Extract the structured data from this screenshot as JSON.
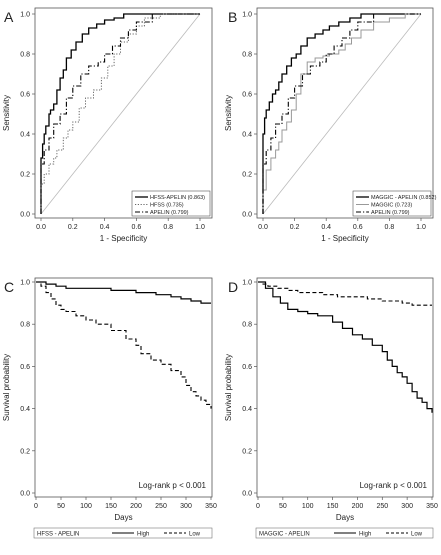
{
  "chart_data": [
    {
      "panel": "A",
      "type": "line",
      "xlabel": "1 - Specificity",
      "ylabel": "Sensitivity",
      "xlim": [
        0,
        1
      ],
      "ylim": [
        0,
        1
      ],
      "xticks": [
        "0.0",
        "0.2",
        "0.4",
        "0.6",
        "0.8",
        "1.0"
      ],
      "yticks": [
        "0.0",
        "0.2",
        "0.4",
        "0.6",
        "0.8",
        "1.0"
      ],
      "reference_line": true,
      "legend": "bottom-right",
      "series": [
        {
          "name": "HFSS-APELIN (0.863)",
          "style": "solid",
          "color": "#000000",
          "width": 1.3,
          "x": [
            0,
            0,
            0.01,
            0.02,
            0.03,
            0.05,
            0.06,
            0.08,
            0.1,
            0.12,
            0.14,
            0.16,
            0.19,
            0.22,
            0.26,
            0.3,
            0.35,
            0.4,
            0.46,
            0.52,
            0.56,
            0.6,
            0.7,
            0.8,
            1.0
          ],
          "y": [
            0,
            0.2,
            0.28,
            0.35,
            0.4,
            0.44,
            0.5,
            0.52,
            0.55,
            0.62,
            0.68,
            0.72,
            0.78,
            0.82,
            0.86,
            0.9,
            0.93,
            0.95,
            0.97,
            0.98,
            1.0,
            1.0,
            1.0,
            1.0,
            1.0
          ]
        },
        {
          "name": "HFSS (0.735)",
          "style": "dotted",
          "color": "#666666",
          "width": 1.0,
          "x": [
            0,
            0,
            0.02,
            0.05,
            0.08,
            0.1,
            0.14,
            0.17,
            0.2,
            0.24,
            0.28,
            0.33,
            0.38,
            0.42,
            0.46,
            0.5,
            0.55,
            0.6,
            0.65,
            0.75,
            0.85,
            1.0
          ],
          "y": [
            0,
            0.08,
            0.15,
            0.2,
            0.25,
            0.28,
            0.32,
            0.38,
            0.42,
            0.46,
            0.53,
            0.58,
            0.62,
            0.68,
            0.74,
            0.8,
            0.86,
            0.9,
            0.94,
            0.98,
            1.0,
            1.0
          ]
        },
        {
          "name": "APELIN (0.799)",
          "style": "dashdot",
          "color": "#000000",
          "width": 1.1,
          "x": [
            0,
            0,
            0.02,
            0.05,
            0.08,
            0.12,
            0.16,
            0.2,
            0.25,
            0.3,
            0.36,
            0.4,
            0.45,
            0.5,
            0.55,
            0.6,
            0.7,
            0.8,
            0.9,
            1.0
          ],
          "y": [
            0,
            0.15,
            0.25,
            0.32,
            0.38,
            0.45,
            0.5,
            0.58,
            0.64,
            0.7,
            0.74,
            0.76,
            0.8,
            0.84,
            0.88,
            0.92,
            0.96,
            1.0,
            1.0,
            1.0
          ]
        }
      ]
    },
    {
      "panel": "B",
      "type": "line",
      "xlabel": "1 - Specificity",
      "ylabel": "Sensitivity",
      "xlim": [
        0,
        1
      ],
      "ylim": [
        0,
        1
      ],
      "xticks": [
        "0.0",
        "0.2",
        "0.4",
        "0.6",
        "0.8",
        "1.0"
      ],
      "yticks": [
        "0.0",
        "0.2",
        "0.4",
        "0.6",
        "0.8",
        "1.0"
      ],
      "reference_line": true,
      "legend": "bottom-right",
      "series": [
        {
          "name": "MAGGIC - APELIN (0.852)",
          "style": "solid",
          "color": "#000000",
          "width": 1.3,
          "x": [
            0,
            0,
            0.01,
            0.02,
            0.04,
            0.06,
            0.08,
            0.1,
            0.12,
            0.15,
            0.18,
            0.21,
            0.24,
            0.28,
            0.33,
            0.38,
            0.42,
            0.48,
            0.55,
            0.62,
            0.7,
            0.75,
            0.8,
            1.0
          ],
          "y": [
            0,
            0.3,
            0.4,
            0.48,
            0.52,
            0.56,
            0.6,
            0.62,
            0.66,
            0.7,
            0.74,
            0.78,
            0.8,
            0.84,
            0.88,
            0.9,
            0.92,
            0.94,
            0.96,
            0.98,
            1.0,
            1.0,
            1.0,
            1.0
          ]
        },
        {
          "name": "MAGGIC (0.723)",
          "style": "solid",
          "color": "#999999",
          "width": 1.0,
          "x": [
            0,
            0,
            0.02,
            0.05,
            0.08,
            0.1,
            0.12,
            0.15,
            0.18,
            0.21,
            0.24,
            0.28,
            0.33,
            0.38,
            0.42,
            0.48,
            0.52,
            0.56,
            0.62,
            0.7,
            0.8,
            0.9,
            1.0
          ],
          "y": [
            0,
            0.05,
            0.12,
            0.22,
            0.28,
            0.32,
            0.36,
            0.42,
            0.46,
            0.52,
            0.6,
            0.7,
            0.76,
            0.78,
            0.79,
            0.8,
            0.82,
            0.85,
            0.88,
            0.92,
            0.96,
            0.98,
            1.0
          ]
        },
        {
          "name": "APELIN (0.799)",
          "style": "dashdot",
          "color": "#000000",
          "width": 1.1,
          "x": [
            0,
            0,
            0.02,
            0.05,
            0.08,
            0.12,
            0.16,
            0.2,
            0.25,
            0.3,
            0.36,
            0.4,
            0.45,
            0.5,
            0.55,
            0.6,
            0.7,
            0.8,
            0.9,
            1.0
          ],
          "y": [
            0,
            0.15,
            0.25,
            0.32,
            0.38,
            0.45,
            0.5,
            0.58,
            0.64,
            0.7,
            0.74,
            0.76,
            0.8,
            0.84,
            0.88,
            0.92,
            0.96,
            1.0,
            1.0,
            1.0
          ]
        }
      ]
    },
    {
      "panel": "C",
      "type": "line",
      "step": true,
      "xlabel": "Days",
      "ylabel": "Survival probability",
      "xlim": [
        0,
        350
      ],
      "ylim": [
        0,
        1
      ],
      "xticks": [
        "0",
        "50",
        "100",
        "150",
        "200",
        "250",
        "300",
        "350"
      ],
      "yticks": [
        "0.0",
        "0.2",
        "0.4",
        "0.6",
        "0.8",
        "1.0"
      ],
      "annotation": "Log-rank p < 0.001",
      "legend_title": "HFSS - APELIN",
      "series": [
        {
          "name": "High",
          "style": "solid",
          "color": "#000000",
          "width": 1.2,
          "x": [
            0,
            20,
            40,
            60,
            100,
            150,
            200,
            240,
            270,
            290,
            310,
            330,
            350
          ],
          "y": [
            1.0,
            0.99,
            0.98,
            0.97,
            0.97,
            0.96,
            0.95,
            0.94,
            0.93,
            0.92,
            0.91,
            0.9,
            0.9
          ]
        },
        {
          "name": "Low",
          "style": "dashed",
          "color": "#000000",
          "width": 1.1,
          "x": [
            0,
            10,
            20,
            30,
            40,
            50,
            60,
            80,
            100,
            120,
            150,
            180,
            200,
            210,
            230,
            250,
            270,
            290,
            300,
            310,
            320,
            330,
            340,
            350
          ],
          "y": [
            1.0,
            0.98,
            0.95,
            0.92,
            0.89,
            0.87,
            0.86,
            0.84,
            0.82,
            0.8,
            0.77,
            0.73,
            0.7,
            0.66,
            0.63,
            0.61,
            0.58,
            0.55,
            0.51,
            0.48,
            0.46,
            0.44,
            0.42,
            0.4
          ]
        }
      ]
    },
    {
      "panel": "D",
      "type": "line",
      "step": true,
      "xlabel": "Days",
      "ylabel": "Survival probability",
      "xlim": [
        0,
        350
      ],
      "ylim": [
        0,
        1
      ],
      "xticks": [
        "0",
        "50",
        "100",
        "150",
        "200",
        "250",
        "300",
        "350"
      ],
      "yticks": [
        "0.0",
        "0.2",
        "0.4",
        "0.6",
        "0.8",
        "1.0"
      ],
      "annotation": "Log-rank p < 0.001",
      "legend_title": "MAGGIC - APELIN",
      "series": [
        {
          "name": "High",
          "style": "solid",
          "color": "#000000",
          "width": 1.2,
          "x": [
            0,
            15,
            30,
            45,
            60,
            80,
            100,
            120,
            150,
            170,
            190,
            210,
            230,
            250,
            260,
            270,
            280,
            290,
            300,
            310,
            320,
            330,
            340,
            350
          ],
          "y": [
            1.0,
            0.97,
            0.93,
            0.9,
            0.87,
            0.86,
            0.85,
            0.84,
            0.81,
            0.78,
            0.75,
            0.73,
            0.7,
            0.67,
            0.63,
            0.6,
            0.57,
            0.55,
            0.52,
            0.48,
            0.45,
            0.43,
            0.4,
            0.38
          ]
        },
        {
          "name": "Low",
          "style": "dashed",
          "color": "#000000",
          "width": 1.1,
          "x": [
            0,
            10,
            20,
            40,
            60,
            80,
            100,
            130,
            160,
            190,
            220,
            250,
            270,
            290,
            310,
            330,
            350
          ],
          "y": [
            1.0,
            0.99,
            0.98,
            0.97,
            0.96,
            0.95,
            0.95,
            0.94,
            0.93,
            0.93,
            0.92,
            0.91,
            0.91,
            0.9,
            0.89,
            0.89,
            0.89
          ]
        }
      ]
    }
  ]
}
